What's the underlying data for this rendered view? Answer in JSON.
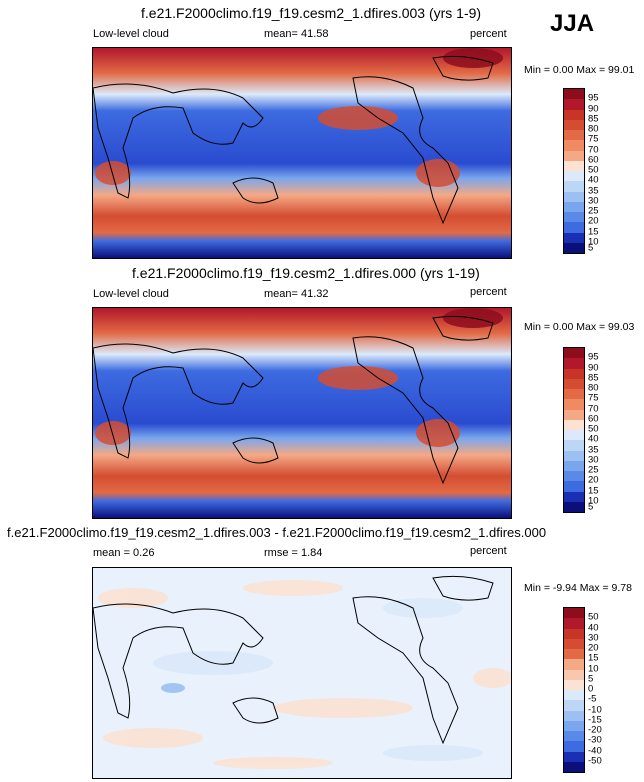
{
  "season": "JJA",
  "colors": {
    "red_scale": [
      "#ffffff",
      "#fbe2d3",
      "#f8c8ad",
      "#f4a985",
      "#ef8a62",
      "#e26a45",
      "#d44d32",
      "#c73527",
      "#b2182b",
      "#8e0d1d"
    ],
    "blue_scale": [
      "#0a0f7a",
      "#1a2fb4",
      "#2a4bd0",
      "#3d6be0",
      "#5a89e8",
      "#7aa6ee",
      "#9cc0f2",
      "#bcd6f6",
      "#dbe9fa",
      "#ffffff"
    ],
    "land_outline": "#000000"
  },
  "panels": [
    {
      "title": "f.e21.F2000climo.f19_f19.cesm2_1.dfires.003 (yrs 1-9)",
      "left_label": "Low-level cloud",
      "center_label": "mean=  41.58",
      "right_label": "percent",
      "minmax": "Min =   0.00 Max =  99.01",
      "colorbar_ticks": [
        "95",
        "90",
        "85",
        "80",
        "75",
        "70",
        "60",
        "50",
        "40",
        "35",
        "30",
        "25",
        "20",
        "15",
        "10",
        "5"
      ]
    },
    {
      "title": "f.e21.F2000climo.f19_f19.cesm2_1.dfires.000 (yrs 1-19)",
      "left_label": "Low-level cloud",
      "center_label": "mean=  41.32",
      "right_label": "percent",
      "minmax": "Min =   0.00 Max =  99.03",
      "colorbar_ticks": [
        "95",
        "90",
        "85",
        "80",
        "75",
        "70",
        "60",
        "50",
        "40",
        "35",
        "30",
        "25",
        "20",
        "15",
        "10",
        "5"
      ]
    },
    {
      "title": "f.e21.F2000climo.f19_f19.cesm2_1.dfires.003 - f.e21.F2000climo.f19_f19.cesm2_1.dfires.000",
      "left_label": "mean =   0.26",
      "center_label": "rmse =   1.84",
      "right_label": "percent",
      "minmax": "Min =  -9.94 Max =   9.78",
      "colorbar_ticks": [
        "50",
        "40",
        "30",
        "20",
        "15",
        "10",
        "5",
        "0",
        "-5",
        "-10",
        "-15",
        "-20",
        "-30",
        "-40",
        "-50"
      ]
    }
  ]
}
